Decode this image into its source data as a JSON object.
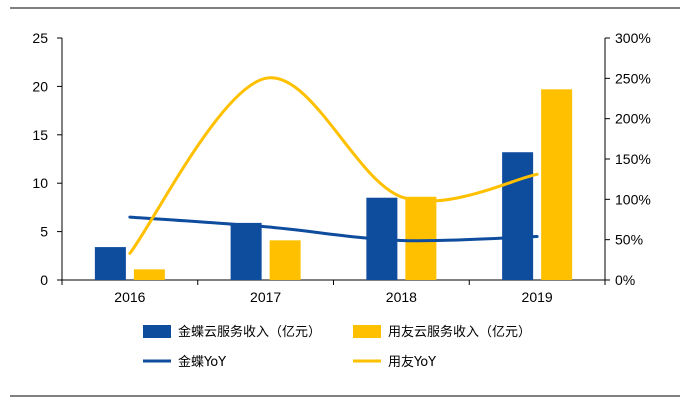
{
  "chart_data": {
    "type": "bar",
    "categories": [
      "2016",
      "2017",
      "2018",
      "2019"
    ],
    "series": [
      {
        "name": "金蝶云服务收入（亿元）",
        "kind": "bar",
        "axis": "left",
        "color": "#0E4C9E",
        "values": [
          3.4,
          5.9,
          8.5,
          13.2
        ]
      },
      {
        "name": "用友云服务收入（亿元）",
        "kind": "bar",
        "axis": "left",
        "color": "#FFC000",
        "values": [
          1.1,
          4.1,
          8.6,
          19.7
        ]
      },
      {
        "name": "金蝶YoY",
        "kind": "line",
        "axis": "right",
        "color": "#0E4C9E",
        "values": [
          0.78,
          0.66,
          0.49,
          0.54
        ]
      },
      {
        "name": "用友YoY",
        "kind": "line",
        "axis": "right",
        "color": "#FFC000",
        "values": [
          0.33,
          2.5,
          1.03,
          1.31
        ]
      }
    ],
    "left_axis": {
      "ylim": [
        0,
        25
      ],
      "ticks": [
        "0",
        "5",
        "10",
        "15",
        "20",
        "25"
      ]
    },
    "right_axis": {
      "ylim": [
        0,
        3
      ],
      "ticks": [
        "0%",
        "50%",
        "100%",
        "150%",
        "200%",
        "250%",
        "300%"
      ]
    },
    "legend": {
      "placement": "bottom"
    },
    "grid": false
  }
}
